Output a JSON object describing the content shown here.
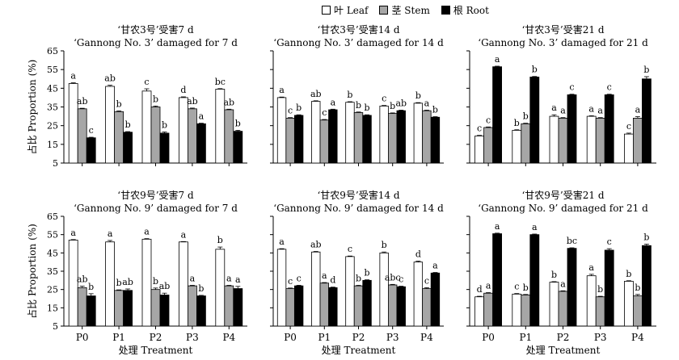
{
  "legend": [
    {
      "label": "叶 Leaf",
      "color": "#ffffff"
    },
    {
      "label": "茎 Stem",
      "color": "#a6a6a6"
    },
    {
      "label": "根 Root",
      "color": "#000000"
    }
  ],
  "axis_text": {
    "ylabel": "占比 Proportion (%)",
    "xlabel": "处理 Treatment",
    "yticks": [
      "5",
      "15",
      "25",
      "35",
      "45",
      "55",
      "65"
    ]
  },
  "chart_data": [
    {
      "type": "bar",
      "title": "‘甘农3号’受害7 d",
      "subtitle": "‘Gannong No. 3’ damaged for 7 d",
      "categories": [
        "P0",
        "P1",
        "P2",
        "P3",
        "P4"
      ],
      "ylim": [
        5,
        65
      ],
      "series": [
        {
          "name": "叶 Leaf",
          "values": [
            47.5,
            46,
            43.5,
            40,
            44.5
          ],
          "errors": [
            0.4,
            0.6,
            1.2,
            0.4,
            0.3
          ],
          "letters": [
            "a",
            "ab",
            "c",
            "d",
            "bc"
          ]
        },
        {
          "name": "茎 Stem",
          "values": [
            34,
            32.5,
            35,
            34,
            33.5
          ],
          "errors": [
            0.3,
            0.4,
            0.5,
            0.4,
            0.3
          ],
          "letters": [
            "ab",
            "b",
            "b",
            "ab",
            "ab"
          ]
        },
        {
          "name": "根 Root",
          "values": [
            18.5,
            21.5,
            21,
            26,
            22
          ],
          "errors": [
            0.3,
            0.3,
            0.6,
            0.3,
            0.5
          ],
          "letters": [
            "c",
            "b",
            "b",
            "a",
            "b"
          ]
        }
      ],
      "show_ylabel": true,
      "show_yticks": true,
      "show_xaxis": false
    },
    {
      "type": "bar",
      "title": "‘甘农3号’受害14 d",
      "subtitle": "‘Gannong No. 3’ damaged for 14 d",
      "categories": [
        "P0",
        "P1",
        "P2",
        "P3",
        "P4"
      ],
      "ylim": [
        5,
        65
      ],
      "series": [
        {
          "name": "叶 Leaf",
          "values": [
            40,
            38,
            37.5,
            35.5,
            37
          ],
          "errors": [
            0.3,
            0.3,
            0.3,
            0.3,
            0.3
          ],
          "letters": [
            "a",
            "ab",
            "b",
            "c",
            "b"
          ]
        },
        {
          "name": "茎 Stem",
          "values": [
            29,
            28,
            32,
            31.5,
            33
          ],
          "errors": [
            0.3,
            0.3,
            0.3,
            0.3,
            0.3
          ],
          "letters": [
            "c",
            "c",
            "b",
            "b",
            "a"
          ]
        },
        {
          "name": "根 Root",
          "values": [
            30.5,
            33.5,
            30.5,
            33,
            29.5
          ],
          "errors": [
            0.3,
            0.3,
            0.3,
            0.3,
            0.3
          ],
          "letters": [
            "b",
            "a",
            "b",
            "ab",
            "b"
          ]
        }
      ],
      "show_ylabel": false,
      "show_yticks": false,
      "show_xaxis": false
    },
    {
      "type": "bar",
      "title": "‘甘农3号’受害21 d",
      "subtitle": "‘Gannong No. 3’ damaged for 21 d",
      "categories": [
        "P0",
        "P1",
        "P2",
        "P3",
        "P4"
      ],
      "ylim": [
        5,
        65
      ],
      "series": [
        {
          "name": "叶 Leaf",
          "values": [
            19.5,
            22.5,
            30,
            30,
            20.5
          ],
          "errors": [
            0.3,
            0.3,
            0.8,
            0.3,
            0.5
          ],
          "letters": [
            "c",
            "b",
            "a",
            "a",
            "c"
          ]
        },
        {
          "name": "茎 Stem",
          "values": [
            24,
            26,
            29,
            29,
            29
          ],
          "errors": [
            0.3,
            0.3,
            0.3,
            0.3,
            0.8
          ],
          "letters": [
            "c",
            "b",
            "a",
            "a",
            "a"
          ]
        },
        {
          "name": "根 Root",
          "values": [
            56.5,
            51,
            41.5,
            41.5,
            50
          ],
          "errors": [
            0.3,
            0.3,
            0.3,
            0.3,
            1.2
          ],
          "letters": [
            "a",
            "b",
            "c",
            "c",
            "b"
          ]
        }
      ],
      "show_ylabel": false,
      "show_yticks": false,
      "show_xaxis": false
    },
    {
      "type": "bar",
      "title": "‘甘农9号’受害7 d",
      "subtitle": "‘Gannong No. 9’ damaged for 7 d",
      "categories": [
        "P0",
        "P1",
        "P2",
        "P3",
        "P4"
      ],
      "ylim": [
        5,
        65
      ],
      "series": [
        {
          "name": "叶 Leaf",
          "values": [
            52,
            51,
            52.5,
            51,
            47
          ],
          "errors": [
            0.3,
            0.8,
            0.3,
            0.2,
            1.2
          ],
          "letters": [
            "a",
            "a",
            "a",
            "a",
            "b"
          ]
        },
        {
          "name": "茎 Stem",
          "values": [
            26,
            24.5,
            25,
            27,
            27
          ],
          "errors": [
            0.8,
            0.3,
            0.8,
            0.3,
            0.3
          ],
          "letters": [
            "ab",
            "b",
            "b",
            "a",
            "a"
          ]
        },
        {
          "name": "根 Root",
          "values": [
            21.5,
            24.5,
            22,
            21.5,
            25.5
          ],
          "errors": [
            1.2,
            0.8,
            1.0,
            0.3,
            1.2
          ],
          "letters": [
            "b",
            "ab",
            "ab",
            "b",
            "a"
          ]
        }
      ],
      "show_ylabel": true,
      "show_yticks": true,
      "show_xaxis": true
    },
    {
      "type": "bar",
      "title": "‘甘农9号’受害14 d",
      "subtitle": "‘Gannong No. 9’ damaged for 14 d",
      "categories": [
        "P0",
        "P1",
        "P2",
        "P3",
        "P4"
      ],
      "ylim": [
        5,
        65
      ],
      "series": [
        {
          "name": "叶 Leaf",
          "values": [
            47,
            45.5,
            43,
            45,
            40
          ],
          "errors": [
            0.3,
            0.3,
            0.3,
            0.5,
            0.5
          ],
          "letters": [
            "a",
            "ab",
            "c",
            "b",
            "d"
          ]
        },
        {
          "name": "茎 Stem",
          "values": [
            25.5,
            28.5,
            27,
            27.5,
            25.5
          ],
          "errors": [
            0.3,
            0.3,
            0.3,
            0.3,
            0.5
          ],
          "letters": [
            "c",
            "a",
            "b",
            "abc",
            "c"
          ]
        },
        {
          "name": "根 Root",
          "values": [
            27,
            26,
            30,
            26.5,
            34
          ],
          "errors": [
            0.3,
            0.3,
            0.3,
            0.3,
            0.3
          ],
          "letters": [
            "c",
            "d",
            "b",
            "c",
            "a"
          ]
        }
      ],
      "show_ylabel": false,
      "show_yticks": false,
      "show_xaxis": true
    },
    {
      "type": "bar",
      "title": "‘甘农9号’受害21 d",
      "subtitle": "‘Gannong No. 9’ damaged for 21 d",
      "categories": [
        "P0",
        "P1",
        "P2",
        "P3",
        "P4"
      ],
      "ylim": [
        5,
        65
      ],
      "series": [
        {
          "name": "叶 Leaf",
          "values": [
            21,
            22.5,
            29,
            32.5,
            29.5
          ],
          "errors": [
            0.3,
            0.3,
            0.3,
            0.8,
            0.3
          ],
          "letters": [
            "d",
            "c",
            "b",
            "a",
            "b"
          ]
        },
        {
          "name": "茎 Stem",
          "values": [
            23,
            22,
            24,
            21,
            21.5
          ],
          "errors": [
            0.3,
            0.3,
            0.3,
            0.3,
            0.8
          ],
          "letters": [
            "a",
            "b",
            "a",
            "b",
            "b"
          ]
        },
        {
          "name": "根 Root",
          "values": [
            55.5,
            55,
            47.5,
            46.5,
            49
          ],
          "errors": [
            0.3,
            0.3,
            0.3,
            0.8,
            0.8
          ],
          "letters": [
            "a",
            "a",
            "bc",
            "c",
            "b"
          ]
        }
      ],
      "show_ylabel": false,
      "show_yticks": false,
      "show_xaxis": true
    }
  ]
}
